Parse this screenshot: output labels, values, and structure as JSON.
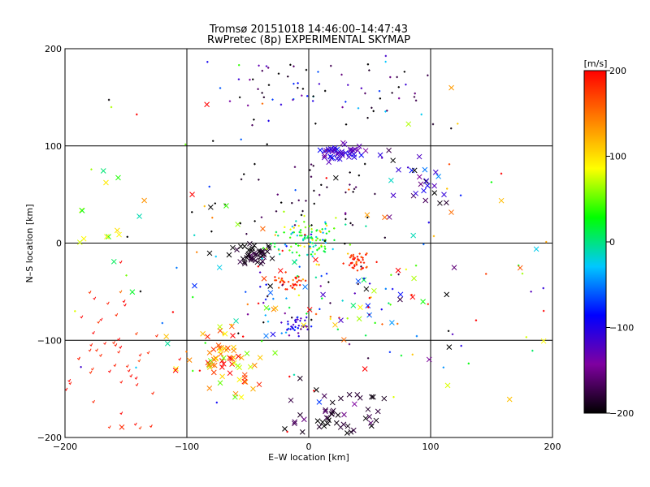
{
  "chart_data": {
    "type": "scatter",
    "title": "Tromsø 20151018 14:46:00–14:47:43",
    "subtitle": "RwPretec (8p) EXPERIMENTAL SKYMAP",
    "xlabel": "E–W location [km]",
    "ylabel": "N–S location [km]",
    "xlim": [
      -200,
      200
    ],
    "ylim": [
      -200,
      200
    ],
    "x_ticks": [
      -200,
      -100,
      0,
      100,
      200
    ],
    "y_ticks": [
      -200,
      -100,
      0,
      100,
      200
    ],
    "grid": true,
    "colorbar": {
      "label": "[m/s]",
      "range": [
        -200,
        200
      ],
      "ticks": [
        200,
        100,
        0,
        -100,
        -200
      ],
      "colormap": [
        "#000000",
        "#7f00a0",
        "#0000ff",
        "#00c8ff",
        "#00ff00",
        "#ffff00",
        "#ff8000",
        "#ff0000"
      ]
    },
    "clusters": [
      {
        "cx": 27,
        "cy": 93,
        "sx": 10,
        "sy": 4,
        "n": 45,
        "v": -115,
        "vs": 20,
        "marker": "cross"
      },
      {
        "cx": 40,
        "cy": -18,
        "sx": 6,
        "sy": 5,
        "n": 40,
        "v": 185,
        "vs": 15,
        "marker": "dot"
      },
      {
        "cx": -45,
        "cy": -12,
        "sx": 9,
        "sy": 5,
        "n": 45,
        "v": -190,
        "vs": 15,
        "marker": "cross"
      },
      {
        "cx": -18,
        "cy": -40,
        "sx": 7,
        "sy": 4,
        "n": 35,
        "v": 175,
        "vs": 20,
        "marker": "dot"
      },
      {
        "cx": -10,
        "cy": -85,
        "sx": 7,
        "sy": 6,
        "n": 40,
        "v": -110,
        "vs": 30,
        "marker": "dot"
      },
      {
        "cx": 0,
        "cy": 2,
        "sx": 14,
        "sy": 12,
        "n": 110,
        "v": 20,
        "vs": 50,
        "marker": "dot"
      },
      {
        "cx": -70,
        "cy": -120,
        "sx": 14,
        "sy": 15,
        "n": 65,
        "v": 130,
        "vs": 50,
        "marker": "cross"
      },
      {
        "cx": -15,
        "cy": 160,
        "sx": 28,
        "sy": 18,
        "n": 40,
        "v": -120,
        "vs": 80,
        "marker": "dot"
      },
      {
        "cx": 55,
        "cy": 155,
        "sx": 25,
        "sy": 20,
        "n": 35,
        "v": -150,
        "vs": 70,
        "marker": "dot"
      },
      {
        "cx": 30,
        "cy": -175,
        "sx": 22,
        "sy": 15,
        "n": 50,
        "v": -185,
        "vs": 20,
        "marker": "cross"
      },
      {
        "cx": -30,
        "cy": -60,
        "sx": 20,
        "sy": 20,
        "n": 45,
        "v": 0,
        "vs": 140,
        "marker": "mixed"
      },
      {
        "cx": 90,
        "cy": 60,
        "sx": 15,
        "sy": 15,
        "n": 22,
        "v": -150,
        "vs": 60,
        "marker": "cross"
      },
      {
        "cx": -160,
        "cy": -110,
        "sx": 25,
        "sy": 45,
        "n": 55,
        "v": 190,
        "vs": 15,
        "marker": "tick"
      },
      {
        "cx": -170,
        "cy": 30,
        "sx": 25,
        "sy": 25,
        "n": 14,
        "v": 60,
        "vs": 40,
        "marker": "cross"
      },
      {
        "cx": 10,
        "cy": 40,
        "sx": 35,
        "sy": 25,
        "n": 45,
        "v": -190,
        "vs": 20,
        "marker": "dot"
      },
      {
        "cx": 50,
        "cy": -60,
        "sx": 25,
        "sy": 20,
        "n": 40,
        "v": 0,
        "vs": 120,
        "marker": "mixed"
      },
      {
        "cx": 120,
        "cy": -30,
        "sx": 50,
        "sy": 60,
        "n": 30,
        "v": 0,
        "vs": 150,
        "marker": "mixed"
      },
      {
        "cx": 0,
        "cy": 0,
        "sx": 110,
        "sy": 110,
        "n": 140,
        "v": 0,
        "vs": 170,
        "marker": "mixed"
      }
    ]
  }
}
